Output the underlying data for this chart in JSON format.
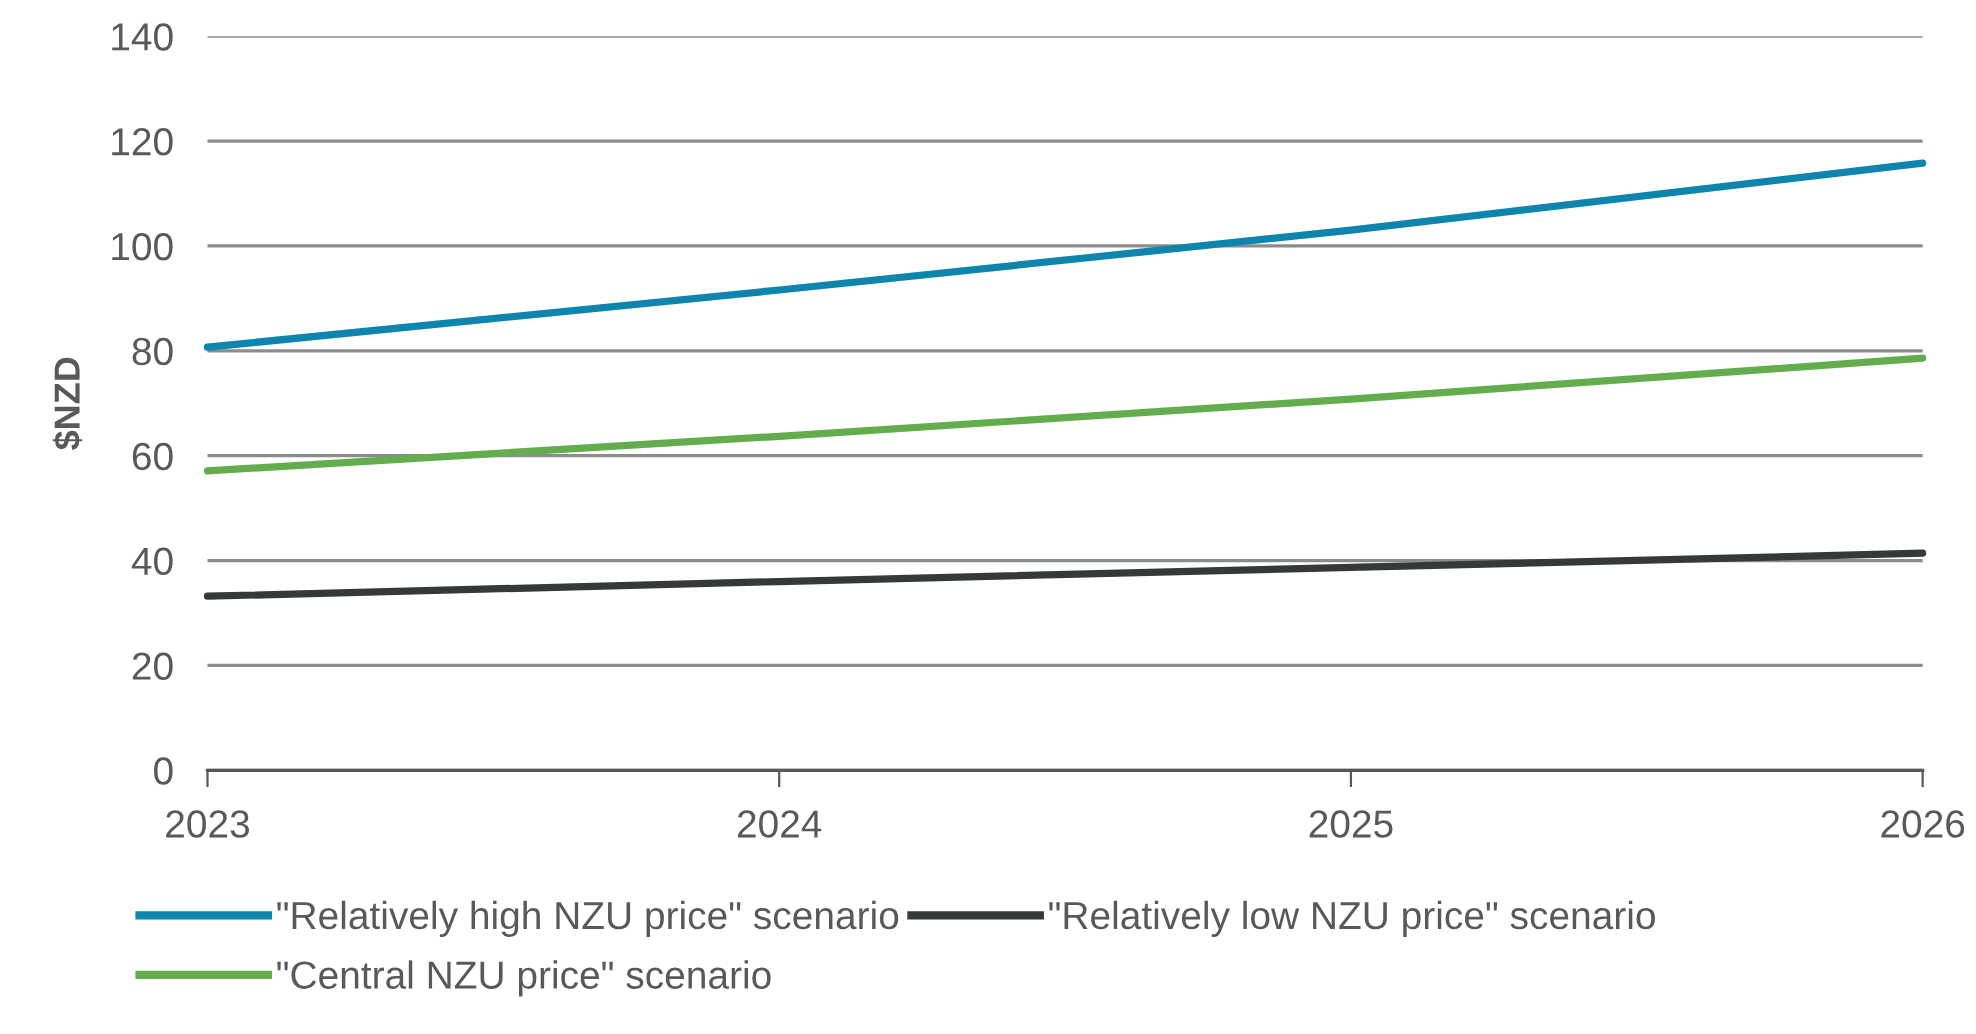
{
  "chart_data": {
    "type": "line",
    "ylabel": "$NZD",
    "x": [
      2023,
      2024,
      2025,
      2026
    ],
    "series": [
      {
        "name": "\"Relatively high NZU price\" scenario",
        "color": "#0e85ad",
        "values": [
          80.7,
          91.6,
          103,
          115.8
        ]
      },
      {
        "name": "\"Central NZU price\" scenario",
        "color": "#64ad4f",
        "values": [
          57.1,
          63.7,
          70.8,
          78.6
        ]
      },
      {
        "name": "\"Relatively low NZU price\" scenario",
        "color": "#363a37",
        "values": [
          33.2,
          36,
          38.7,
          41.4
        ]
      }
    ],
    "xlim": [
      2023,
      2026
    ],
    "xticks": [
      2023,
      2024,
      2025,
      2026
    ],
    "ylim": [
      0,
      140
    ],
    "yticks": [
      0,
      20,
      40,
      60,
      80,
      100,
      120,
      140
    ],
    "grid": "y",
    "legend": "bottom",
    "marker": "none",
    "line_style": "solid"
  }
}
